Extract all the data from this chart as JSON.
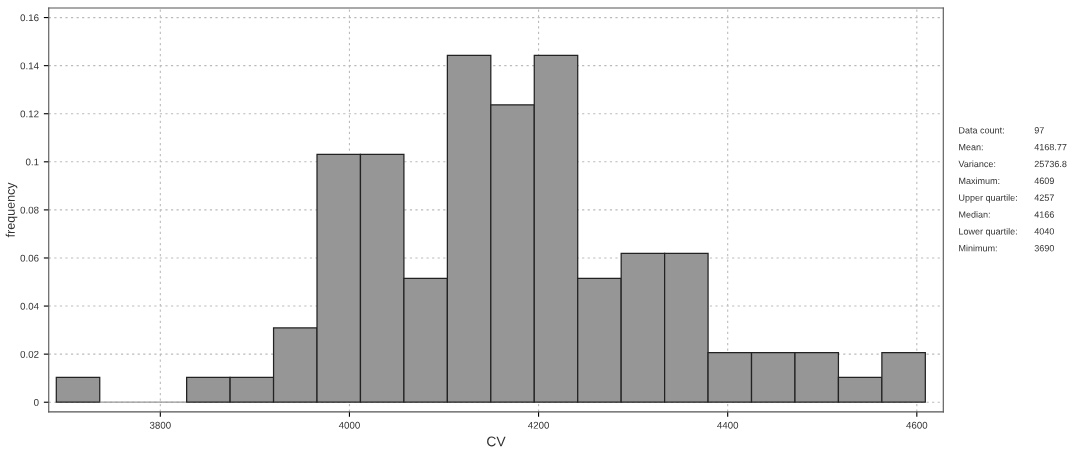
{
  "chart_data": {
    "type": "histogram",
    "xlabel": "CV",
    "ylabel": "frequency",
    "bins": [
      3690,
      3735.95,
      3781.9,
      3827.85,
      3873.8,
      3919.75,
      3965.7,
      4011.65,
      4057.6,
      4103.55,
      4149.5,
      4195.45,
      4241.4,
      4287.35,
      4333.3,
      4379.25,
      4425.2,
      4471.15,
      4517.1,
      4563.05,
      4609
    ],
    "values": [
      0.0103,
      0,
      0,
      0.0103,
      0.0103,
      0.0309,
      0.1031,
      0.1031,
      0.0515,
      0.1443,
      0.1237,
      0.1443,
      0.0515,
      0.0619,
      0.0619,
      0.0206,
      0.0206,
      0.0206,
      0.0103,
      0.0206
    ],
    "color": "#969696",
    "xlim": [
      3682,
      4628
    ],
    "ylim": [
      -0.004,
      0.164
    ],
    "xticks": [
      3800,
      4000,
      4200,
      4400,
      4600
    ],
    "yticks": [
      0,
      0.02,
      0.04,
      0.06,
      0.08,
      0.1,
      0.12,
      0.14,
      0.16
    ],
    "grid": true,
    "annotations": [
      "Data count: 97",
      "Mean: 4168.77",
      "Variance: 25736.8",
      "Maximum: 4609",
      "Upper quartile: 4257",
      "Median: 4166",
      "Lower quartile: 4040",
      "Minimum: 3690"
    ]
  }
}
